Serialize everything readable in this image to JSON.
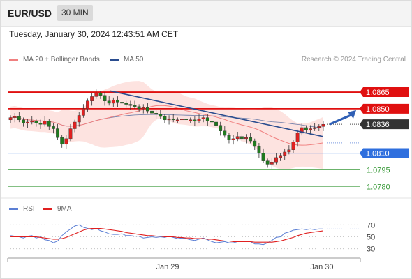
{
  "header": {
    "symbol": "EUR/USD",
    "timeframe": "30 MIN",
    "timestamp": "Tuesday, January 30, 2024 12:43:51 AM CET"
  },
  "legend": {
    "bollinger_label": "MA 20 + Bollinger Bands",
    "bollinger_color": "#f08080",
    "ma50_label": "MA 50",
    "ma50_color": "#2a4d8f",
    "credit": "Research © 2024 Trading Central"
  },
  "rsi_legend": {
    "rsi_label": "RSI",
    "rsi_color": "#5b7fd4",
    "ma_label": "9MA",
    "ma_color": "#e02020"
  },
  "chart_data": [
    {
      "type": "candlestick",
      "series_name": "EUR/USD 30 MIN",
      "ylim": [
        1.0772,
        1.0882
      ],
      "x": {
        "tick_labels": [
          "Jan 29",
          "Jan 30"
        ]
      },
      "levels": [
        {
          "value": 1.0865,
          "label": "1.0865",
          "color": "#e01010",
          "style": "resistance"
        },
        {
          "value": 1.085,
          "label": "1.0850",
          "color": "#e01010",
          "style": "resistance"
        },
        {
          "value": 1.0836,
          "label": "1.0836",
          "color": "#333333",
          "style": "last-price"
        },
        {
          "value": 1.081,
          "label": "1.0810",
          "color": "#2f6fde",
          "style": "pivot"
        },
        {
          "value": 1.0795,
          "label": "1.0795",
          "color": "#3a9a3a",
          "style": "support"
        },
        {
          "value": 1.078,
          "label": "1.0780",
          "color": "#3a9a3a",
          "style": "support"
        }
      ],
      "closes": [
        1.0842,
        1.0843,
        1.084,
        1.0837,
        1.0838,
        1.0839,
        1.0837,
        1.0836,
        1.0839,
        1.0834,
        1.0832,
        1.0824,
        1.0818,
        1.0823,
        1.0832,
        1.0838,
        1.0844,
        1.085,
        1.0857,
        1.0861,
        1.0864,
        1.0862,
        1.0857,
        1.0855,
        1.0858,
        1.0856,
        1.0855,
        1.0854,
        1.0853,
        1.0852,
        1.085,
        1.0851,
        1.0848,
        1.0846,
        1.0845,
        1.0843,
        1.084,
        1.0841,
        1.084,
        1.084,
        1.0841,
        1.084,
        1.084,
        1.0839,
        1.0841,
        1.0842,
        1.0839,
        1.0838,
        1.0835,
        1.083,
        1.0826,
        1.0822,
        1.0823,
        1.0825,
        1.0823,
        1.0824,
        1.0821,
        1.0816,
        1.081,
        1.0803,
        1.08,
        1.0802,
        1.0806,
        1.0808,
        1.0811,
        1.0813,
        1.082,
        1.0828,
        1.0833,
        1.0831,
        1.0832,
        1.0833,
        1.0834,
        1.0836
      ],
      "trend_line": {
        "from": 1.0866,
        "to": 1.0825
      },
      "forecast_target": 1.085
    },
    {
      "type": "line",
      "title": "RSI",
      "ylim": [
        18,
        82
      ],
      "y_ticks": [
        70,
        50,
        30
      ],
      "series": [
        {
          "name": "RSI",
          "values": [
            52,
            51,
            50,
            48,
            51,
            52,
            48,
            50,
            45,
            44,
            40,
            43,
            52,
            58,
            63,
            68,
            70,
            66,
            64,
            62,
            64,
            60,
            58,
            55,
            54,
            54,
            55,
            52,
            52,
            51,
            51,
            48,
            49,
            50,
            49,
            50,
            49,
            51,
            49,
            47,
            48,
            47,
            45,
            44,
            46,
            48,
            45,
            42,
            40,
            41,
            42,
            40,
            40,
            42,
            42,
            43,
            42,
            38,
            38,
            37,
            40,
            44,
            49,
            50,
            56,
            58,
            61,
            62,
            63,
            62,
            63,
            62,
            63,
            63
          ]
        },
        {
          "name": "9MA",
          "values": [
            50,
            50,
            50,
            50,
            50,
            50,
            50,
            49,
            48,
            47,
            46,
            46,
            47,
            49,
            52,
            55,
            58,
            61,
            63,
            64,
            64,
            64,
            63,
            62,
            61,
            60,
            59,
            57,
            56,
            55,
            54,
            53,
            52,
            52,
            51,
            51,
            50,
            50,
            50,
            49,
            49,
            48,
            48,
            47,
            47,
            47,
            46,
            46,
            45,
            44,
            43,
            43,
            42,
            42,
            42,
            42,
            42,
            41,
            41,
            41,
            41,
            41,
            42,
            43,
            45,
            47,
            49,
            52,
            54,
            56,
            57,
            58,
            59,
            60
          ]
        }
      ]
    }
  ]
}
